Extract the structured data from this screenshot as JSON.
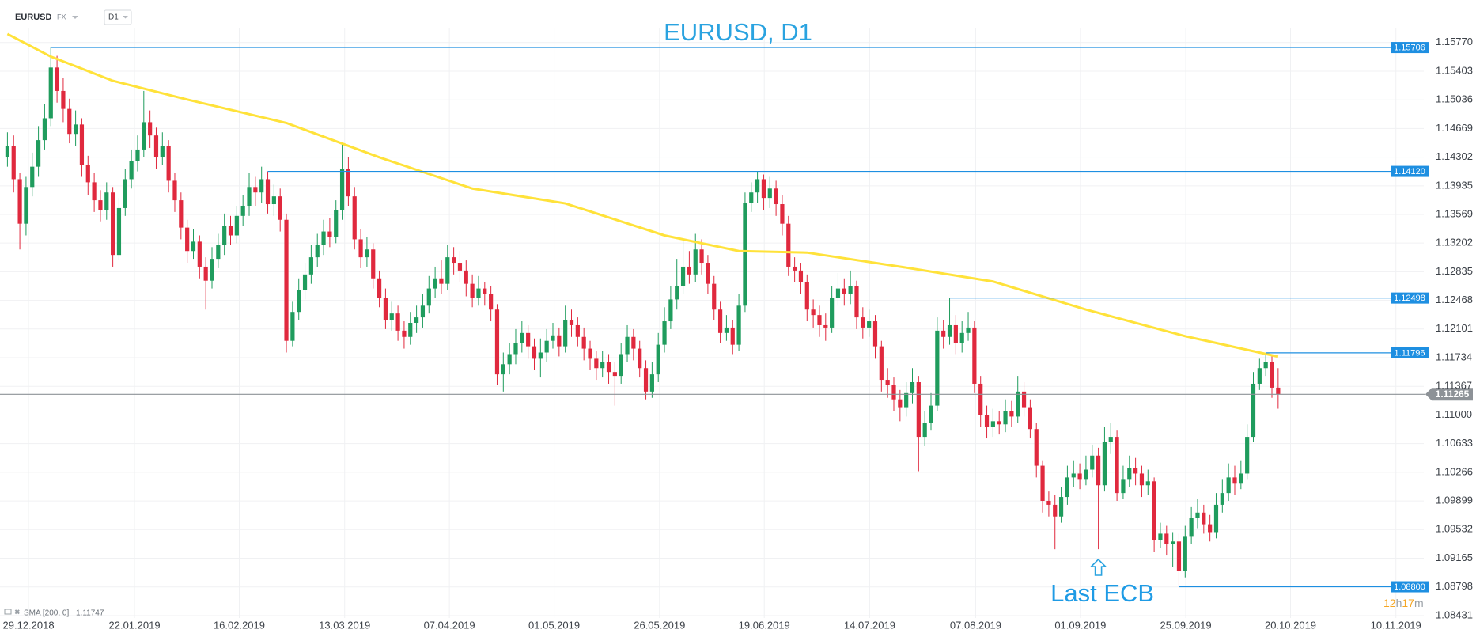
{
  "toolbar": {
    "symbol": "EURUSD",
    "market": "FX",
    "interval": "D1"
  },
  "timer": [
    "12",
    "h",
    "17",
    "m"
  ],
  "chart_data": {
    "type": "candlestick",
    "title": "EURUSD, D1",
    "up_color": "#1f9c5d",
    "down_color": "#e0293e",
    "level_color": "#1e8fe1",
    "grid": true,
    "xlim": [
      -1.2,
      228.5
    ],
    "xticks": [
      {
        "value": 3.4,
        "label": "29.12.2018"
      },
      {
        "value": 20.5,
        "label": "22.01.2019"
      },
      {
        "value": 37.4,
        "label": "16.02.2019"
      },
      {
        "value": 54.4,
        "label": "13.03.2019"
      },
      {
        "value": 71.3,
        "label": "07.04.2019"
      },
      {
        "value": 88.2,
        "label": "01.05.2019"
      },
      {
        "value": 105.2,
        "label": "26.05.2019"
      },
      {
        "value": 122.1,
        "label": "19.06.2019"
      },
      {
        "value": 139.1,
        "label": "14.07.2019"
      },
      {
        "value": 156.2,
        "label": "07.08.2019"
      },
      {
        "value": 173.1,
        "label": "01.09.2019"
      },
      {
        "value": 190.1,
        "label": "25.09.2019"
      },
      {
        "value": 207,
        "label": "20.10.2019"
      },
      {
        "value": 224,
        "label": "10.11.2019"
      }
    ],
    "ylim": [
      1.084,
      1.1595
    ],
    "yticks": [
      {
        "value": 1.1577,
        "label": "1.15770"
      },
      1.15403,
      1.15036,
      1.14669,
      1.14302,
      1.13935,
      1.13569,
      1.13202,
      1.12835,
      1.12468,
      1.12101,
      1.11734,
      1.11367,
      {
        "value": 1.11,
        "label": "1.11000"
      },
      1.10633,
      1.10266,
      1.09899,
      1.09532,
      1.09165,
      1.08798,
      1.08431
    ],
    "open": [
      1.143,
      1.1445,
      1.1402,
      1.1345,
      1.1392,
      1.1418,
      1.1452,
      1.148,
      1.1545,
      1.1515,
      1.1492,
      1.146,
      1.1472,
      1.142,
      1.1398,
      1.1375,
      1.1362,
      1.1385,
      1.1305,
      1.1365,
      1.1402,
      1.1425,
      1.144,
      1.1475,
      1.1458,
      1.143,
      1.1445,
      1.14,
      1.1375,
      1.134,
      1.131,
      1.1322,
      1.129,
      1.1272,
      1.13,
      1.1318,
      1.1342,
      1.133,
      1.1355,
      1.1368,
      1.1392,
      1.1385,
      1.1402,
      1.137,
      1.138,
      1.135,
      1.1195,
      1.1232,
      1.126,
      1.128,
      1.1302,
      1.1318,
      1.1335,
      1.1328,
      1.1362,
      1.1415,
      1.138,
      1.1325,
      1.1302,
      1.1312,
      1.1275,
      1.125,
      1.1222,
      1.123,
      1.1208,
      1.12,
      1.1218,
      1.1225,
      1.124,
      1.1262,
      1.1275,
      1.1268,
      1.1302,
      1.1295,
      1.1285,
      1.1268,
      1.125,
      1.1262,
      1.1255,
      1.1235,
      1.1152,
      1.1165,
      1.1178,
      1.1192,
      1.1205,
      1.1188,
      1.1172,
      1.118,
      1.1195,
      1.1202,
      1.1188,
      1.1222,
      1.1215,
      1.12,
      1.1185,
      1.1172,
      1.116,
      1.1168,
      1.1155,
      1.115,
      1.1178,
      1.12,
      1.1185,
      1.116,
      1.113,
      1.1152,
      1.119,
      1.122,
      1.1248,
      1.1265,
      1.129,
      1.128,
      1.1312,
      1.1295,
      1.1268,
      1.1235,
      1.1205,
      1.1212,
      1.119,
      1.124,
      1.1372,
      1.1385,
      1.1402,
      1.1378,
      1.139,
      1.137,
      1.1345,
      1.129,
      1.1285,
      1.127,
      1.1235,
      1.1228,
      1.1215,
      1.1212,
      1.125,
      1.1262,
      1.1255,
      1.1265,
      1.1225,
      1.1212,
      1.122,
      1.1188,
      1.1145,
      1.1138,
      1.112,
      1.111,
      1.1128,
      1.1142,
      1.1072,
      1.109,
      1.1112,
      1.1208,
      1.12,
      1.1215,
      1.1192,
      1.1205,
      1.1212,
      1.114,
      1.11,
      1.1085,
      1.1092,
      1.1088,
      1.1105,
      1.1098,
      1.113,
      1.111,
      1.1082,
      1.1035,
      1.099,
      1.0985,
      1.097,
      1.0995,
      1.102,
      1.1025,
      1.1018,
      1.103,
      1.1048,
      1.101,
      1.1065,
      1.1072,
      1.1,
      1.1018,
      1.1032,
      1.1025,
      1.101,
      1.1015,
      1.094,
      1.0948,
      1.0935,
      1.0938,
      1.09,
      1.0945,
      1.0968,
      1.0975,
      1.096,
      1.095,
      1.0985,
      1.1,
      1.102,
      1.1012,
      1.1025,
      1.1072,
      1.114,
      1.116,
      1.1168,
      1.1135
    ],
    "high": [
      1.1462,
      1.1458,
      1.141,
      1.1405,
      1.1436,
      1.147,
      1.1498,
      1.15706,
      1.156,
      1.1532,
      1.1505,
      1.149,
      1.148,
      1.1432,
      1.141,
      1.1388,
      1.1398,
      1.1392,
      1.1378,
      1.1415,
      1.144,
      1.1458,
      1.1515,
      1.149,
      1.1468,
      1.1462,
      1.1452,
      1.141,
      1.1385,
      1.135,
      1.1338,
      1.133,
      1.1302,
      1.1315,
      1.1332,
      1.1358,
      1.1355,
      1.1368,
      1.1382,
      1.141,
      1.1405,
      1.1418,
      1.1412,
      1.1395,
      1.139,
      1.1358,
      1.1245,
      1.1275,
      1.1295,
      1.1318,
      1.1332,
      1.135,
      1.1352,
      1.1375,
      1.1448,
      1.143,
      1.1392,
      1.1338,
      1.1328,
      1.132,
      1.1285,
      1.1262,
      1.1245,
      1.124,
      1.122,
      1.1232,
      1.124,
      1.1255,
      1.1278,
      1.129,
      1.1298,
      1.1318,
      1.1315,
      1.131,
      1.1298,
      1.128,
      1.1278,
      1.127,
      1.1265,
      1.1242,
      1.118,
      1.1192,
      1.121,
      1.122,
      1.1215,
      1.1198,
      1.1198,
      1.121,
      1.1218,
      1.1212,
      1.124,
      1.1235,
      1.1225,
      1.1212,
      1.1195,
      1.1182,
      1.1182,
      1.1178,
      1.1168,
      1.1192,
      1.1215,
      1.121,
      1.1195,
      1.117,
      1.1168,
      1.1205,
      1.1238,
      1.1265,
      1.13,
      1.1325,
      1.131,
      1.1332,
      1.1325,
      1.1305,
      1.1278,
      1.1245,
      1.1228,
      1.1222,
      1.1255,
      1.1385,
      1.1398,
      1.1412,
      1.1408,
      1.1405,
      1.14,
      1.1382,
      1.1355,
      1.1302,
      1.1295,
      1.128,
      1.1248,
      1.124,
      1.123,
      1.1265,
      1.1282,
      1.1275,
      1.1285,
      1.1272,
      1.1238,
      1.1235,
      1.1228,
      1.1195,
      1.116,
      1.1148,
      1.1132,
      1.1142,
      1.116,
      1.115,
      1.1105,
      1.1128,
      1.1225,
      1.1222,
      1.12498,
      1.1228,
      1.122,
      1.1232,
      1.122,
      1.115,
      1.1112,
      1.1108,
      1.1105,
      1.112,
      1.1118,
      1.115,
      1.1142,
      1.112,
      1.109,
      1.1042,
      1.1002,
      1.0998,
      1.1008,
      1.1035,
      1.1042,
      1.1038,
      1.1048,
      1.1062,
      1.1058,
      1.1085,
      1.109,
      1.108,
      1.1035,
      1.1048,
      1.1045,
      1.1035,
      1.103,
      1.102,
      1.0962,
      1.0958,
      1.095,
      1.0948,
      1.0958,
      1.0982,
      1.0992,
      1.0985,
      1.0972,
      1.1,
      1.1018,
      1.1038,
      1.1035,
      1.1042,
      1.1088,
      1.1155,
      1.1172,
      1.11796,
      1.1175,
      1.116
    ],
    "low": [
      1.1418,
      1.1385,
      1.1312,
      1.133,
      1.138,
      1.1405,
      1.144,
      1.147,
      1.15,
      1.1475,
      1.1448,
      1.1445,
      1.1405,
      1.1382,
      1.136,
      1.1348,
      1.135,
      1.129,
      1.1298,
      1.1355,
      1.139,
      1.1412,
      1.143,
      1.1442,
      1.1415,
      1.142,
      1.1385,
      1.136,
      1.1325,
      1.1295,
      1.13,
      1.1275,
      1.1235,
      1.1262,
      1.1288,
      1.1305,
      1.1318,
      1.132,
      1.1342,
      1.1355,
      1.1368,
      1.1372,
      1.1358,
      1.1355,
      1.1335,
      1.118,
      1.1188,
      1.1222,
      1.1248,
      1.1268,
      1.129,
      1.1305,
      1.1315,
      1.132,
      1.135,
      1.1368,
      1.1312,
      1.1288,
      1.129,
      1.1262,
      1.1238,
      1.121,
      1.1208,
      1.1195,
      1.1185,
      1.119,
      1.1205,
      1.1212,
      1.123,
      1.125,
      1.1255,
      1.126,
      1.128,
      1.127,
      1.1252,
      1.1238,
      1.124,
      1.124,
      1.122,
      1.1138,
      1.113,
      1.1152,
      1.1165,
      1.118,
      1.1172,
      1.1158,
      1.1148,
      1.1168,
      1.1185,
      1.1175,
      1.118,
      1.12,
      1.1188,
      1.117,
      1.1158,
      1.1145,
      1.1148,
      1.114,
      1.1112,
      1.114,
      1.1168,
      1.117,
      1.1148,
      1.112,
      1.1122,
      1.1142,
      1.118,
      1.121,
      1.1235,
      1.1255,
      1.1268,
      1.127,
      1.128,
      1.1255,
      1.1222,
      1.1192,
      1.1195,
      1.1178,
      1.1182,
      1.1232,
      1.136,
      1.1372,
      1.1362,
      1.1365,
      1.1355,
      1.133,
      1.1278,
      1.127,
      1.1255,
      1.122,
      1.1212,
      1.12,
      1.1195,
      1.1205,
      1.124,
      1.124,
      1.1242,
      1.121,
      1.1198,
      1.12,
      1.1172,
      1.113,
      1.1122,
      1.1105,
      1.1092,
      1.1098,
      1.1115,
      1.1028,
      1.106,
      1.108,
      1.1105,
      1.1185,
      1.119,
      1.1178,
      1.118,
      1.1195,
      1.1128,
      1.1085,
      1.107,
      1.1072,
      1.1075,
      1.1078,
      1.1085,
      1.109,
      1.1098,
      1.107,
      1.102,
      1.0975,
      1.097,
      1.0928,
      1.0962,
      1.0985,
      1.1008,
      1.1005,
      1.101,
      1.102,
      1.0928,
      1.1002,
      1.105,
      1.099,
      1.0992,
      1.1008,
      1.101,
      1.0995,
      1.0998,
      1.0925,
      1.093,
      1.092,
      1.0905,
      1.088,
      1.0892,
      1.0935,
      1.0955,
      1.0948,
      1.0938,
      1.0942,
      1.0975,
      1.099,
      1.0998,
      1.1005,
      1.1018,
      1.1065,
      1.1132,
      1.115,
      1.1122,
      1.1108
    ],
    "close": [
      1.1445,
      1.1402,
      1.1345,
      1.1392,
      1.1418,
      1.1452,
      1.148,
      1.1545,
      1.1515,
      1.1492,
      1.146,
      1.1472,
      1.142,
      1.1398,
      1.1375,
      1.1362,
      1.1385,
      1.1305,
      1.1365,
      1.1402,
      1.1425,
      1.144,
      1.1475,
      1.1458,
      1.143,
      1.1445,
      1.14,
      1.1375,
      1.134,
      1.131,
      1.1322,
      1.129,
      1.1272,
      1.13,
      1.1318,
      1.1342,
      1.133,
      1.1355,
      1.1368,
      1.1392,
      1.1385,
      1.1402,
      1.137,
      1.138,
      1.135,
      1.1195,
      1.1232,
      1.126,
      1.128,
      1.1302,
      1.1318,
      1.1335,
      1.1328,
      1.1362,
      1.1415,
      1.138,
      1.1325,
      1.1302,
      1.1312,
      1.1275,
      1.125,
      1.1222,
      1.123,
      1.1208,
      1.12,
      1.1218,
      1.1225,
      1.124,
      1.1262,
      1.1275,
      1.1268,
      1.1302,
      1.1295,
      1.1285,
      1.1268,
      1.125,
      1.1262,
      1.1255,
      1.1235,
      1.1152,
      1.1165,
      1.1178,
      1.1192,
      1.1205,
      1.1188,
      1.1172,
      1.118,
      1.1195,
      1.1202,
      1.1188,
      1.1222,
      1.1215,
      1.12,
      1.1185,
      1.1172,
      1.116,
      1.1168,
      1.1155,
      1.115,
      1.1178,
      1.12,
      1.1185,
      1.116,
      1.113,
      1.1152,
      1.119,
      1.122,
      1.1248,
      1.1265,
      1.129,
      1.128,
      1.1312,
      1.1295,
      1.1268,
      1.1235,
      1.1205,
      1.1212,
      1.119,
      1.124,
      1.1372,
      1.1385,
      1.1402,
      1.1378,
      1.139,
      1.137,
      1.1345,
      1.129,
      1.1285,
      1.127,
      1.1235,
      1.1228,
      1.1215,
      1.1212,
      1.125,
      1.1262,
      1.1255,
      1.1265,
      1.1225,
      1.1212,
      1.122,
      1.1188,
      1.1145,
      1.1138,
      1.112,
      1.111,
      1.1128,
      1.1142,
      1.1072,
      1.109,
      1.1112,
      1.1208,
      1.12,
      1.1215,
      1.1192,
      1.1205,
      1.1212,
      1.114,
      1.11,
      1.1085,
      1.1092,
      1.1088,
      1.1105,
      1.1098,
      1.113,
      1.111,
      1.1082,
      1.1035,
      1.099,
      1.0985,
      1.097,
      1.0995,
      1.102,
      1.1025,
      1.1018,
      1.103,
      1.1048,
      1.101,
      1.1065,
      1.1072,
      1.1,
      1.1018,
      1.1032,
      1.1025,
      1.101,
      1.1015,
      1.094,
      1.0948,
      1.0935,
      1.0938,
      1.09,
      1.0945,
      1.0968,
      1.0975,
      1.096,
      1.095,
      1.0985,
      1.1,
      1.102,
      1.1012,
      1.1025,
      1.1072,
      1.114,
      1.116,
      1.1168,
      1.1135,
      1.11265
    ],
    "sma": {
      "name": "SMA [200, 0]",
      "color": "#ffe23a",
      "x": [
        0,
        7,
        17,
        29,
        45,
        60,
        75,
        90,
        106,
        118,
        129,
        144,
        159,
        174,
        190,
        205
      ],
      "values": [
        1.1588,
        1.1559,
        1.1528,
        1.1504,
        1.1474,
        1.143,
        1.139,
        1.1371,
        1.133,
        1.131,
        1.1308,
        1.129,
        1.1271,
        1.1235,
        1.1201,
        1.11747
      ]
    },
    "levels": [
      1.15706,
      {
        "value": 1.1412,
        "label": "1.14120"
      },
      1.12498,
      1.11796,
      {
        "value": 1.088,
        "label": "1.08800"
      }
    ],
    "last_price": 1.11265,
    "annotation": {
      "text": "Last ECB",
      "x": 176
    }
  }
}
